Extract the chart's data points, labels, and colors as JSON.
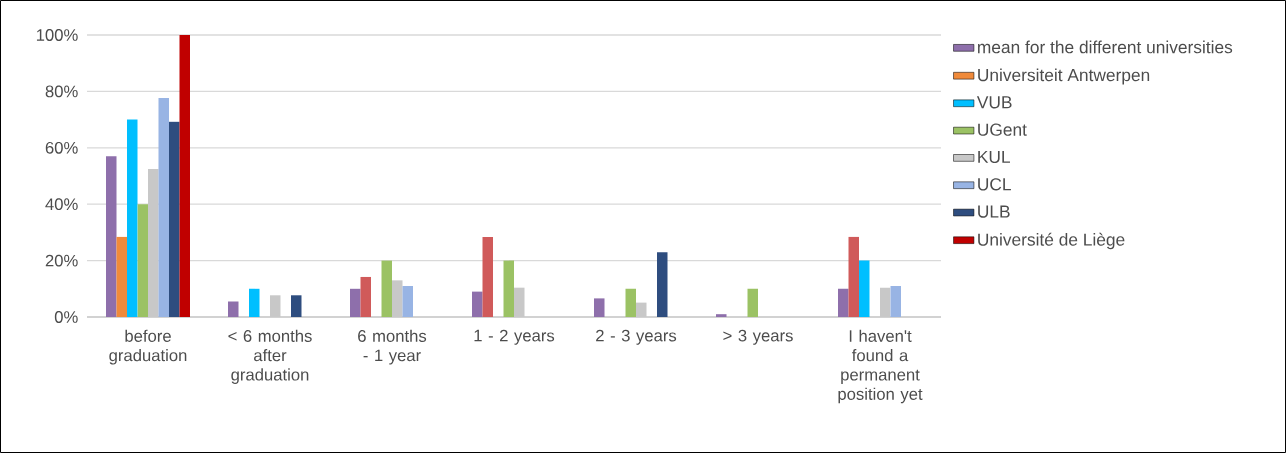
{
  "chart_data": {
    "type": "bar",
    "categories": [
      "before graduation",
      "< 6 months after graduation",
      "6 months - 1 year",
      "1 - 2 years",
      "2 - 3 years",
      "> 3 years",
      "I haven't found a permanent position yet"
    ],
    "series": [
      {
        "name": "mean for the different universities",
        "color": "#8e6fab",
        "values": [
          57,
          5.5,
          10,
          9,
          6.6,
          1,
          10
        ]
      },
      {
        "name": "Universiteit Antwerpen",
        "color": "#f08a3a",
        "colors": [
          "#f08a3a",
          "#d05a5a",
          "#d05a5a",
          "#d05a5a",
          "#d05a5a",
          "#d05a5a",
          "#d05a5a"
        ],
        "values": [
          28.4,
          null,
          14.2,
          28.4,
          null,
          null,
          28.4
        ]
      },
      {
        "name": "VUB",
        "color": "#00bfff",
        "values": [
          70,
          10,
          null,
          null,
          null,
          null,
          20
        ]
      },
      {
        "name": "UGent",
        "color": "#9bc264",
        "values": [
          40,
          null,
          20,
          20,
          10,
          10,
          null
        ]
      },
      {
        "name": "KUL",
        "color": "#c8c8c8",
        "values": [
          52.5,
          7.7,
          13,
          10.4,
          5.1,
          null,
          10.4
        ]
      },
      {
        "name": "UCL",
        "color": "#98b4e4",
        "values": [
          77.7,
          null,
          11,
          null,
          null,
          null,
          11
        ]
      },
      {
        "name": "ULB",
        "color": "#2e4d7f",
        "values": [
          69.2,
          7.7,
          null,
          null,
          23,
          null,
          null
        ]
      },
      {
        "name": "Université de Liège",
        "color": "#c00000",
        "values": [
          100,
          null,
          null,
          null,
          null,
          null,
          null
        ]
      }
    ],
    "ylim": [
      0,
      100
    ],
    "yticks": [
      {
        "value": 0,
        "label": "0%"
      },
      {
        "value": 20,
        "label": "20%"
      },
      {
        "value": 40,
        "label": "40%"
      },
      {
        "value": 60,
        "label": "60%"
      },
      {
        "value": 80,
        "label": "80%"
      },
      {
        "value": 100,
        "label": "100%"
      }
    ],
    "grid": "y",
    "legend": "right"
  }
}
